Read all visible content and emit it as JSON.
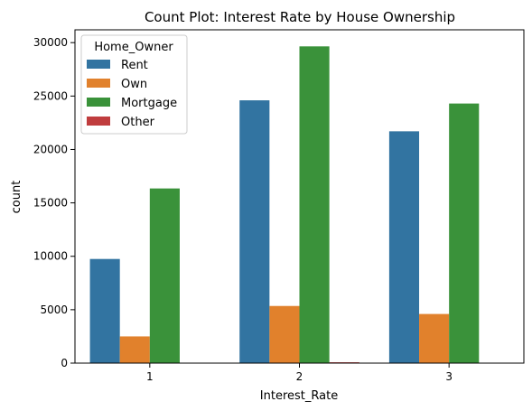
{
  "chart_data": {
    "type": "bar",
    "title": "Count Plot: Interest Rate by House Ownership",
    "xlabel": "Interest_Rate",
    "ylabel": "count",
    "categories": [
      "1",
      "2",
      "3"
    ],
    "ylim": [
      0,
      31200
    ],
    "yticks": [
      0,
      5000,
      10000,
      15000,
      20000,
      25000,
      30000
    ],
    "grid": false,
    "legend": {
      "title": "Home_Owner",
      "placement": "top-left"
    },
    "series": [
      {
        "name": "Rent",
        "color": "#3274a1",
        "values": [
          9750,
          24600,
          21700
        ]
      },
      {
        "name": "Own",
        "color": "#e1812c",
        "values": [
          2500,
          5350,
          4600
        ]
      },
      {
        "name": "Mortgage",
        "color": "#3a923a",
        "values": [
          16350,
          29650,
          24300
        ]
      },
      {
        "name": "Other",
        "color": "#c03d3e",
        "values": [
          0,
          80,
          0
        ]
      }
    ]
  }
}
